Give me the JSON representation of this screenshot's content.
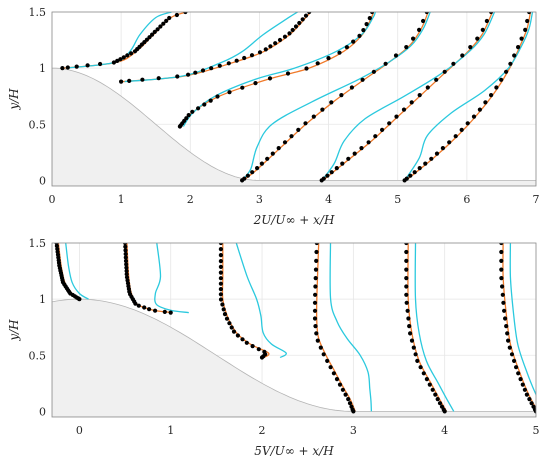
{
  "chart_data": [
    {
      "type": "line",
      "xlabel": "2U/U∞ + x/H",
      "ylabel": "y/H",
      "xlim": [
        0,
        7
      ],
      "ylim": [
        -0.05,
        1.5
      ],
      "xticks": [
        "0",
        "1",
        "2",
        "3",
        "4",
        "5",
        "6",
        "7"
      ],
      "yticks": [
        "0",
        "0.5",
        "1",
        "1.5"
      ],
      "grid": true,
      "profile_stations_x": [
        0.15,
        1.0,
        1.85,
        2.7,
        3.85,
        5.0
      ],
      "profiles": [
        {
          "x0": 0.15,
          "y0": 1.0,
          "yu": [
            [
              1.0,
              0
            ],
            [
              1.05,
              0.75
            ],
            [
              1.15,
              1.05
            ],
            [
              1.3,
              1.3
            ],
            [
              1.45,
              1.55
            ],
            [
              1.5,
              1.78
            ]
          ]
        },
        {
          "x0": 1.0,
          "y0": 0.88,
          "yu": [
            [
              0.88,
              0
            ],
            [
              0.93,
              0.9
            ],
            [
              1.05,
              1.6
            ],
            [
              1.15,
              2.05
            ],
            [
              1.3,
              2.42
            ],
            [
              1.45,
              2.65
            ],
            [
              1.5,
              2.72
            ]
          ]
        },
        {
          "x0": 1.85,
          "y0": 0.48,
          "yu": [
            [
              0.48,
              0
            ],
            [
              0.6,
              0.15
            ],
            [
              0.75,
              0.55
            ],
            [
              0.9,
              1.25
            ],
            [
              1.0,
              1.85
            ],
            [
              1.15,
              2.35
            ],
            [
              1.3,
              2.62
            ],
            [
              1.45,
              2.75
            ],
            [
              1.5,
              2.78
            ]
          ]
        },
        {
          "x0": 2.7,
          "y0": 0.0,
          "yu": [
            [
              0.0,
              0.05
            ],
            [
              0.1,
              0.25
            ],
            [
              0.3,
              0.6
            ],
            [
              0.5,
              0.95
            ],
            [
              0.7,
              1.35
            ],
            [
              0.9,
              1.8
            ],
            [
              1.05,
              2.15
            ],
            [
              1.2,
              2.45
            ],
            [
              1.35,
              2.62
            ],
            [
              1.5,
              2.72
            ]
          ]
        },
        {
          "x0": 3.85,
          "y0": 0.0,
          "yu": [
            [
              0.0,
              0.05
            ],
            [
              0.15,
              0.35
            ],
            [
              0.35,
              0.75
            ],
            [
              0.55,
              1.1
            ],
            [
              0.75,
              1.45
            ],
            [
              0.95,
              1.8
            ],
            [
              1.15,
              2.15
            ],
            [
              1.3,
              2.35
            ],
            [
              1.5,
              2.5
            ]
          ]
        },
        {
          "x0": 5.0,
          "y0": 0.0,
          "yu": [
            [
              0.0,
              0.1
            ],
            [
              0.2,
              0.5
            ],
            [
              0.4,
              0.85
            ],
            [
              0.6,
              1.15
            ],
            [
              0.8,
              1.4
            ],
            [
              1.0,
              1.6
            ],
            [
              1.2,
              1.75
            ],
            [
              1.35,
              1.85
            ],
            [
              1.5,
              1.9
            ]
          ]
        }
      ],
      "series": [
        {
          "name": "",
          "style": "dots"
        },
        {
          "name": "",
          "style": "orange line"
        },
        {
          "name": "",
          "style": "cyan line"
        }
      ]
    },
    {
      "type": "line",
      "xlabel": "5V/U∞ + x/H",
      "ylabel": "y/H",
      "xlim": [
        -0.3,
        5
      ],
      "ylim": [
        -0.05,
        1.5
      ],
      "xticks": [
        "0",
        "1",
        "2",
        "3",
        "4",
        "5"
      ],
      "yticks": [
        "0",
        "0.5",
        "1",
        "1.5"
      ],
      "grid": true,
      "profile_stations_x": [
        0.0,
        1.0,
        2.0,
        3.0,
        4.0,
        5.0
      ],
      "profiles": [
        {
          "x0": 0.0,
          "y0": 1.0,
          "yv": [
            [
              1.0,
              0
            ],
            [
              1.05,
              -0.1
            ],
            [
              1.15,
              -0.18
            ],
            [
              1.3,
              -0.22
            ],
            [
              1.5,
              -0.25
            ]
          ]
        },
        {
          "x0": 1.0,
          "y0": 0.88,
          "yv": [
            [
              0.88,
              0
            ],
            [
              0.9,
              -0.2
            ],
            [
              0.95,
              -0.38
            ],
            [
              1.05,
              -0.45
            ],
            [
              1.2,
              -0.48
            ],
            [
              1.5,
              -0.5
            ]
          ]
        },
        {
          "x0": 2.0,
          "y0": 0.48,
          "yv": [
            [
              0.48,
              0
            ],
            [
              0.52,
              0.05
            ],
            [
              0.6,
              -0.15
            ],
            [
              0.7,
              -0.3
            ],
            [
              0.85,
              -0.4
            ],
            [
              1.0,
              -0.45
            ],
            [
              1.2,
              -0.45
            ],
            [
              1.5,
              -0.45
            ]
          ]
        },
        {
          "x0": 3.0,
          "y0": 0.0,
          "yv": [
            [
              0.0,
              0
            ],
            [
              0.1,
              -0.05
            ],
            [
              0.2,
              -0.12
            ],
            [
              0.35,
              -0.22
            ],
            [
              0.5,
              -0.32
            ],
            [
              0.65,
              -0.4
            ],
            [
              0.8,
              -0.42
            ],
            [
              1.0,
              -0.42
            ],
            [
              1.5,
              -0.4
            ]
          ]
        },
        {
          "x0": 4.0,
          "y0": 0.0,
          "yv": [
            [
              0.0,
              0
            ],
            [
              0.1,
              -0.07
            ],
            [
              0.25,
              -0.17
            ],
            [
              0.45,
              -0.3
            ],
            [
              0.7,
              -0.38
            ],
            [
              1.0,
              -0.42
            ],
            [
              1.5,
              -0.42
            ]
          ]
        },
        {
          "x0": 5.0,
          "y0": 0.0,
          "yv": [
            [
              0.0,
              0
            ],
            [
              0.15,
              -0.1
            ],
            [
              0.35,
              -0.2
            ],
            [
              0.6,
              -0.3
            ],
            [
              0.9,
              -0.35
            ],
            [
              1.2,
              -0.38
            ],
            [
              1.5,
              -0.38
            ]
          ]
        }
      ]
    }
  ]
}
